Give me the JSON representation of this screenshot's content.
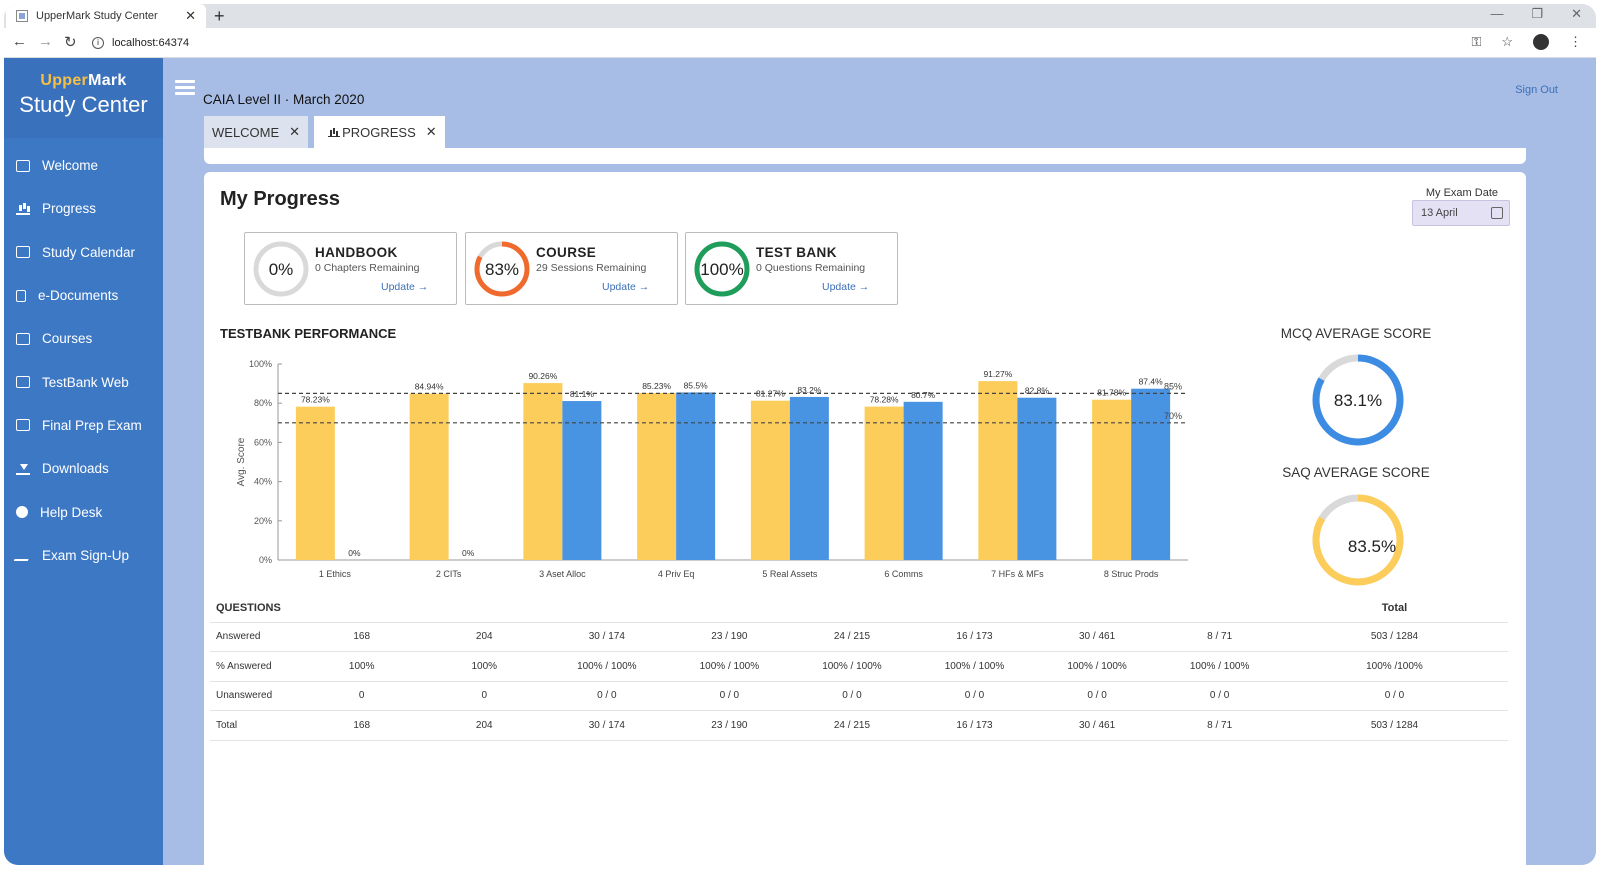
{
  "browser": {
    "tab_title": "UpperMark Study Center",
    "tab_close": "✕",
    "new_tab": "+",
    "url": "localhost:64374"
  },
  "brand": {
    "upper": "Upper",
    "mark": "Mark",
    "subtitle": "Study Center"
  },
  "sidebar": {
    "items": [
      {
        "label": "Welcome",
        "icon": "login-icon"
      },
      {
        "label": "Progress",
        "icon": "bar-chart-icon"
      },
      {
        "label": "Study Calendar",
        "icon": "calendar-icon"
      },
      {
        "label": "e-Documents",
        "icon": "document-icon"
      },
      {
        "label": "Courses",
        "icon": "courses-icon"
      },
      {
        "label": "TestBank Web",
        "icon": "testbank-icon"
      },
      {
        "label": "Final Prep Exam",
        "icon": "exam-icon"
      },
      {
        "label": "Downloads",
        "icon": "download-icon"
      },
      {
        "label": "Help Desk",
        "icon": "help-icon"
      },
      {
        "label": "Exam Sign-Up",
        "icon": "pen-icon"
      }
    ]
  },
  "header": {
    "exam_title": "CAIA Level II · March 2020",
    "sign_out": "Sign Out"
  },
  "tabs": [
    {
      "label": "WELCOME",
      "close": "✕"
    },
    {
      "label": "PROGRESS",
      "close": "✕"
    }
  ],
  "page": {
    "title": "My Progress",
    "exam_date_label": "My Exam Date",
    "exam_date_value": "13 April"
  },
  "stats": [
    {
      "percent_label": "0%",
      "value": 0,
      "name": "HANDBOOK",
      "sub": "0 Chapters Remaining",
      "update": "Update →",
      "color": "#d9d9d9"
    },
    {
      "percent_label": "83%",
      "value": 83,
      "name": "COURSE",
      "sub": "29 Sessions Remaining",
      "update": "Update →",
      "color": "#ef6a2c"
    },
    {
      "percent_label": "100%",
      "value": 100,
      "name": "TEST BANK",
      "sub": "0 Questions Remaining",
      "update": "Update →",
      "color": "#1e9e5a"
    }
  ],
  "testbank_title": "TESTBANK PERFORMANCE",
  "chart_data": {
    "type": "bar",
    "ylabel": "Avg. Score",
    "ylim": [
      0,
      100
    ],
    "yticks": [
      "0%",
      "20%",
      "40%",
      "60%",
      "80%",
      "100%"
    ],
    "categories": [
      "1 Ethics",
      "2 CITs",
      "3 Aset Alloc",
      "4 Priv Eq",
      "5 Real Assets",
      "6 Comms",
      "7 HFs & MFs",
      "8 Struc Prods"
    ],
    "series": [
      {
        "values": [
          78.23,
          84.94,
          90.26,
          85.23,
          81.27,
          78.28,
          91.27,
          81.78
        ],
        "labels": [
          "78.23%",
          "84.94%",
          "90.26%",
          "85.23%",
          "81.27%",
          "78.28%",
          "91.27%",
          "81.78%"
        ],
        "color": "#fccd5a"
      },
      {
        "values": [
          0,
          0,
          81.1,
          85.5,
          83.2,
          80.7,
          82.8,
          87.4
        ],
        "labels": [
          "0%",
          "0%",
          "81.1%",
          "85.5%",
          "83.2%",
          "80.7%",
          "82.8%",
          "87.4%"
        ],
        "color": "#4894e2"
      }
    ],
    "reference_lines": [
      {
        "value": 85,
        "label": "85%"
      },
      {
        "value": 70,
        "label": "70%"
      }
    ]
  },
  "scores": {
    "mcq_title": "MCQ AVERAGE SCORE",
    "mcq_label": "83.1%",
    "mcq_value": 83.1,
    "mcq_color": "#3d8ce3",
    "saq_title": "SAQ AVERAGE SCORE",
    "saq_label": "83.5%",
    "saq_value": 83.5,
    "saq_color": "#fccd5a"
  },
  "questions": {
    "header": "QUESTIONS",
    "total_header": "Total",
    "rows": [
      {
        "label": "Answered",
        "cells": [
          "168",
          "204",
          "30 / 174",
          "23 / 190",
          "24 / 215",
          "16 / 173",
          "30 / 461",
          "8 / 71",
          "503 / 1284"
        ]
      },
      {
        "label": "% Answered",
        "cells": [
          "100%",
          "100%",
          "100% / 100%",
          "100% / 100%",
          "100% / 100%",
          "100% / 100%",
          "100% / 100%",
          "100% / 100%",
          "100% /100%"
        ]
      },
      {
        "label": "Unanswered",
        "cells": [
          "0",
          "0",
          "0 / 0",
          "0 / 0",
          "0 / 0",
          "0 / 0",
          "0 / 0",
          "0 / 0",
          "0 / 0"
        ]
      },
      {
        "label": "Total",
        "cells": [
          "168",
          "204",
          "30 / 174",
          "23 / 190",
          "24 / 215",
          "16 / 173",
          "30 / 461",
          "8 / 71",
          "503 / 1284"
        ]
      }
    ]
  }
}
